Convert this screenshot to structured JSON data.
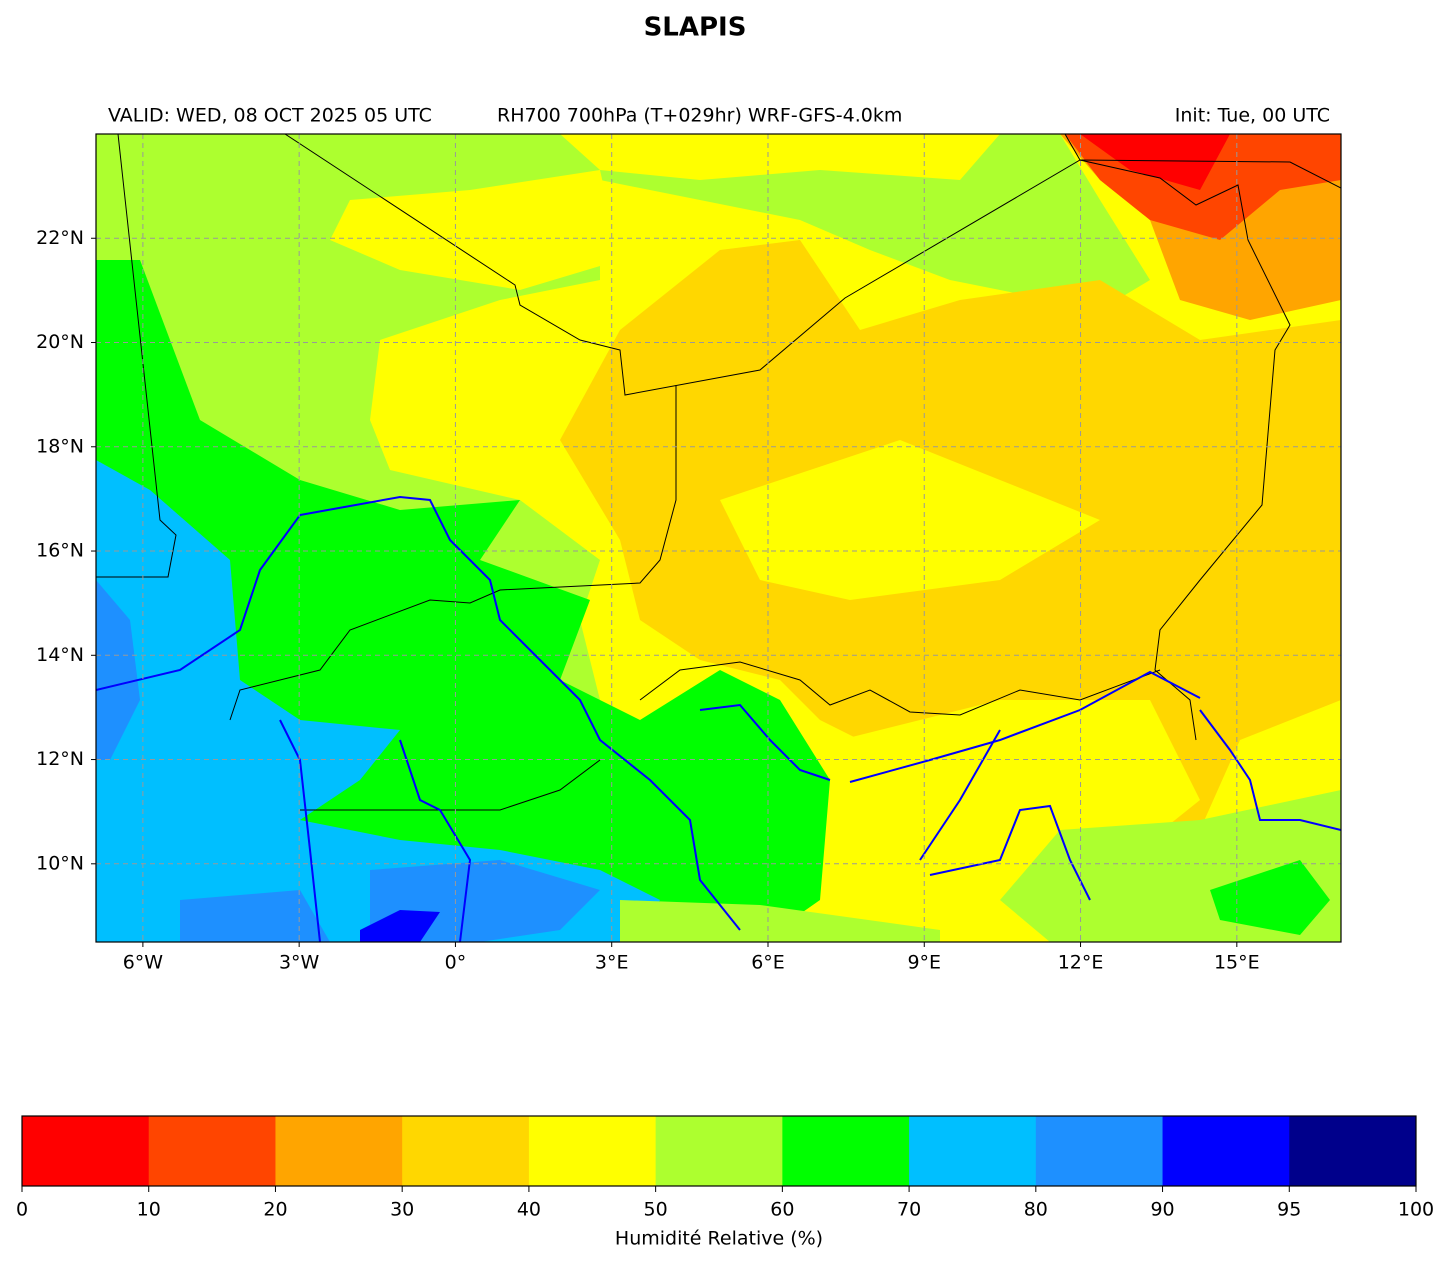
{
  "title": "SLAPIS",
  "header": {
    "valid": "VALID: WED, 08 OCT 2025 05 UTC",
    "product": "RH700 700hPa (T+029hr) WRF-GFS-4.0km",
    "init": "Init: Tue, 00 UTC"
  },
  "map": {
    "xlim": [
      -6.9,
      17
    ],
    "ylim": [
      8.5,
      24
    ],
    "xticks": [
      {
        "value": -6,
        "label": "6°W"
      },
      {
        "value": -3,
        "label": "3°W"
      },
      {
        "value": 0,
        "label": "0°"
      },
      {
        "value": 3,
        "label": "3°E"
      },
      {
        "value": 6,
        "label": "6°E"
      },
      {
        "value": 9,
        "label": "9°E"
      },
      {
        "value": 12,
        "label": "12°E"
      },
      {
        "value": 15,
        "label": "15°E"
      }
    ],
    "yticks": [
      {
        "value": 10,
        "label": "10°N"
      },
      {
        "value": 12,
        "label": "12°N"
      },
      {
        "value": 14,
        "label": "14°N"
      },
      {
        "value": 16,
        "label": "16°N"
      },
      {
        "value": 18,
        "label": "18°N"
      },
      {
        "value": 20,
        "label": "20°N"
      },
      {
        "value": 22,
        "label": "22°N"
      }
    ],
    "grid": true
  },
  "colorbar": {
    "bounds": [
      0,
      10,
      20,
      30,
      40,
      50,
      60,
      70,
      80,
      90,
      95,
      100
    ],
    "colors": [
      "#ff0000",
      "#ff4500",
      "#ffa500",
      "#ffd700",
      "#ffff00",
      "#adff2f",
      "#00ff00",
      "#00bfff",
      "#1e90ff",
      "#0000ff",
      "#00008b"
    ],
    "label": "Humidité Relative (%)"
  }
}
